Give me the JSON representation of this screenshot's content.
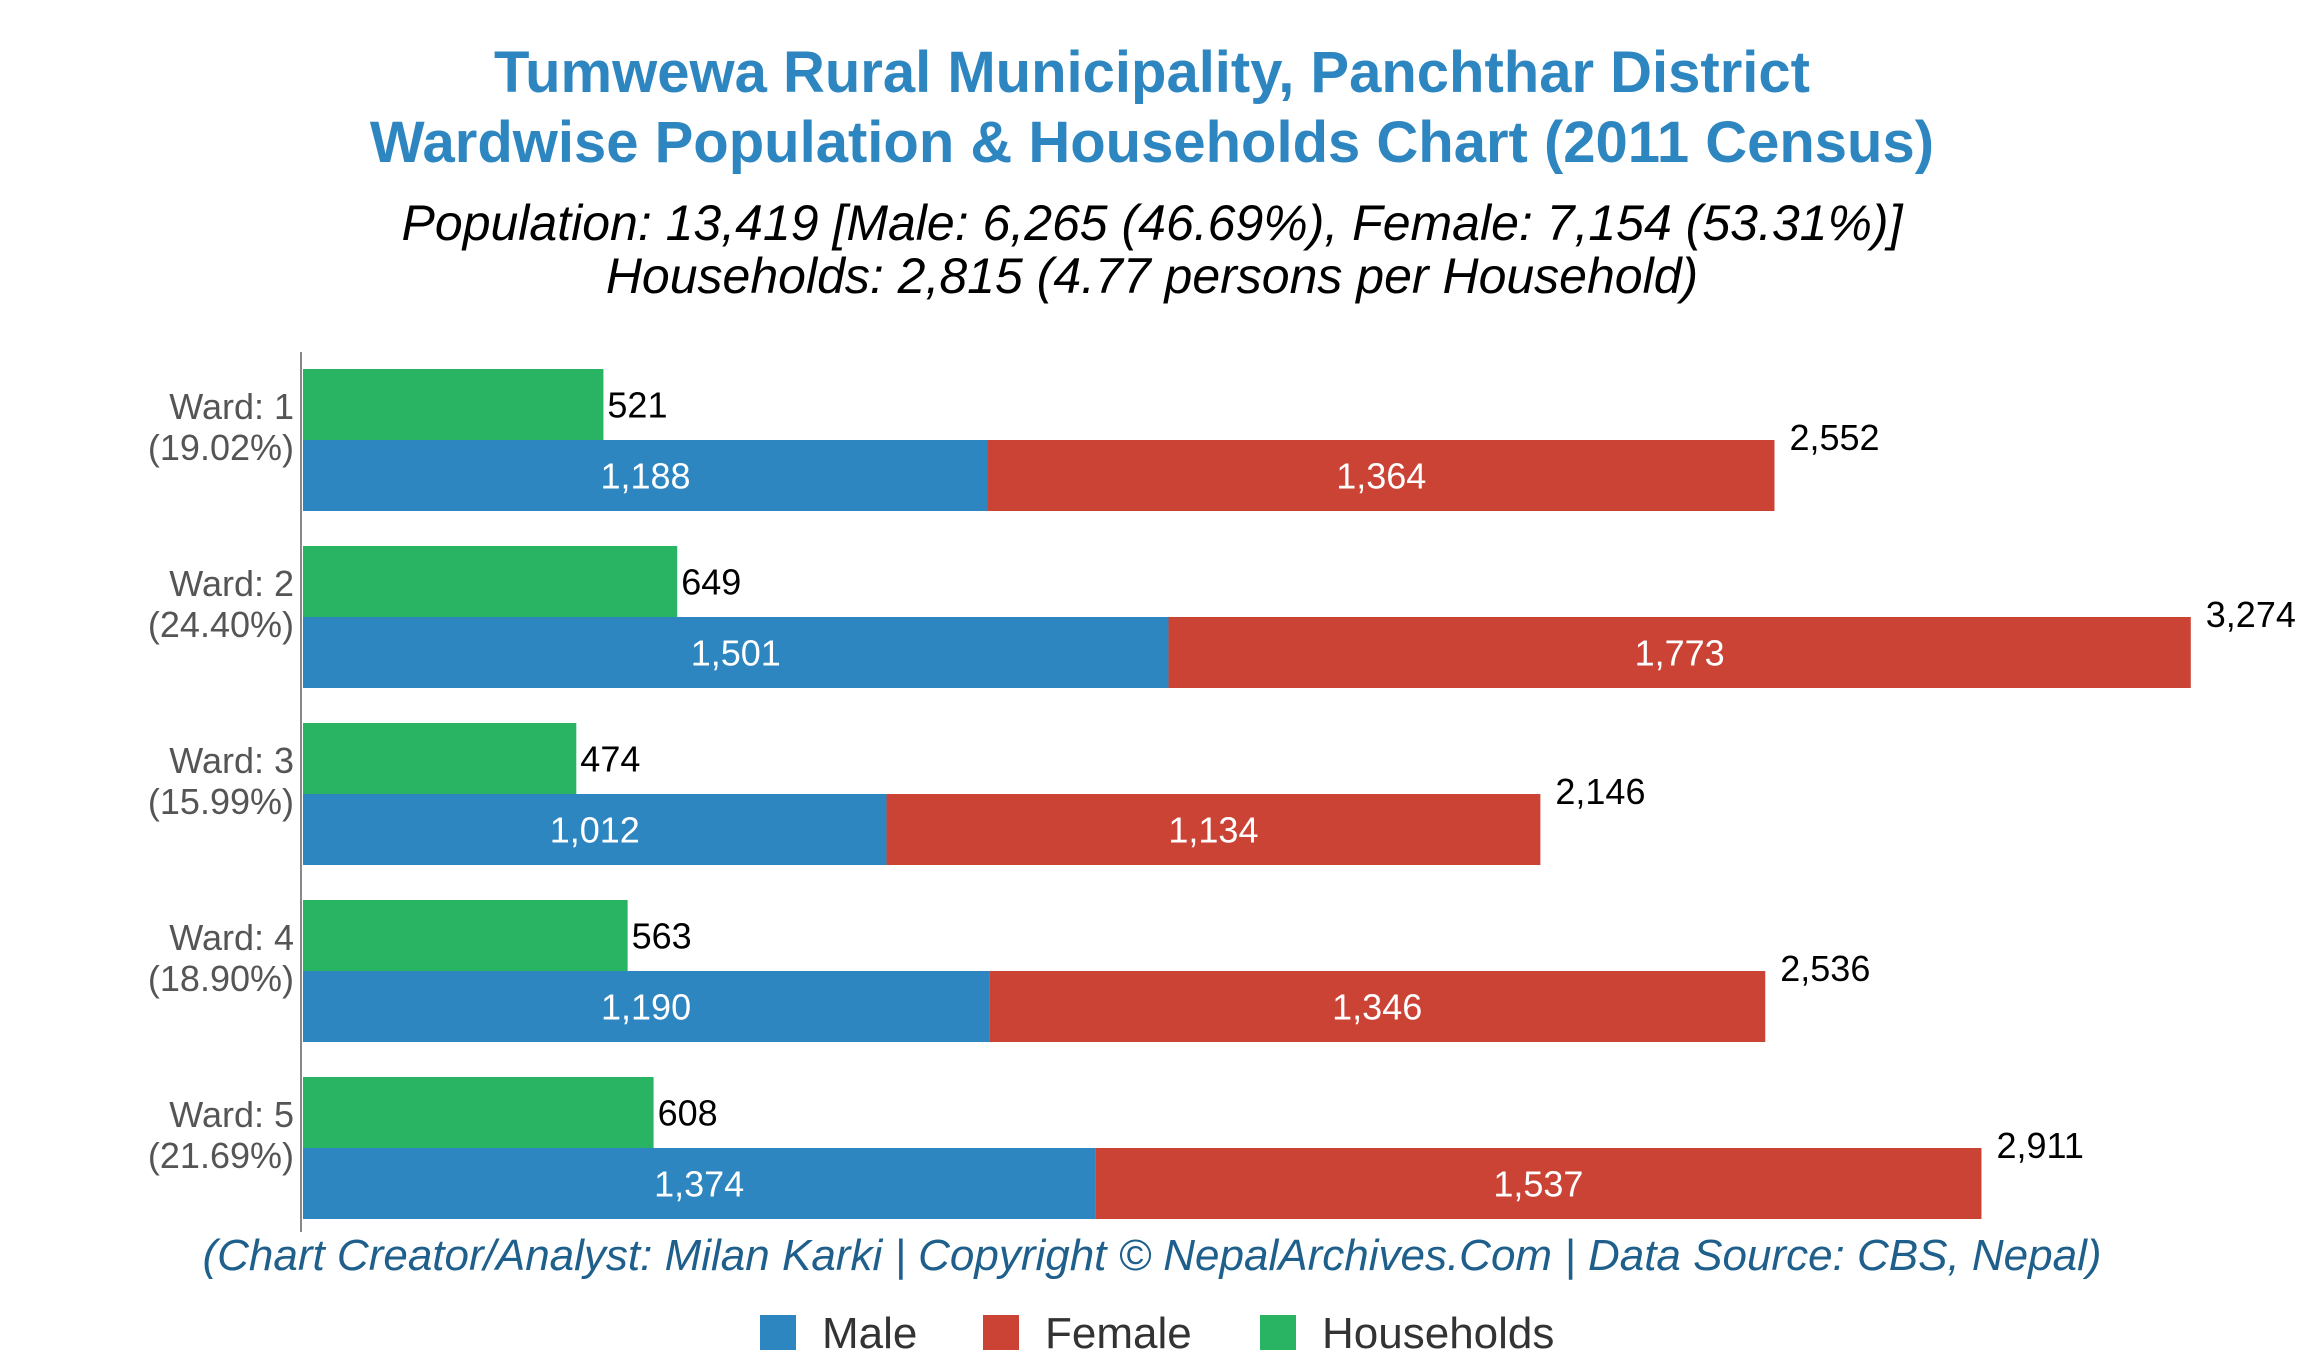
{
  "chart_data": {
    "type": "bar",
    "orientation": "horizontal",
    "title": [
      "Tumwewa Rural Municipality, Panchthar District",
      "Wardwise Population & Households Chart (2011 Census)"
    ],
    "subtitle": [
      "Population: 13,419 [Male: 6,265 (46.69%), Female: 7,154 (53.31%)]",
      "Households: 2,815 (4.77 persons per Household)"
    ],
    "categories": [
      {
        "label": "Ward: 1",
        "share": "(19.02%)"
      },
      {
        "label": "Ward: 2",
        "share": "(24.40%)"
      },
      {
        "label": "Ward: 3",
        "share": "(15.99%)"
      },
      {
        "label": "Ward: 4",
        "share": "(18.90%)"
      },
      {
        "label": "Ward: 5",
        "share": "(21.69%)"
      }
    ],
    "series": [
      {
        "name": "Male",
        "color": "#2e86c1",
        "values": [
          1188,
          1501,
          1012,
          1190,
          1374
        ],
        "labels": [
          "1,188",
          "1,501",
          "1,012",
          "1,190",
          "1,374"
        ]
      },
      {
        "name": "Female",
        "color": "#cb4335",
        "values": [
          1364,
          1773,
          1134,
          1346,
          1537
        ],
        "labels": [
          "1,364",
          "1,773",
          "1,134",
          "1,346",
          "1,537"
        ]
      },
      {
        "name": "Households",
        "color": "#28b463",
        "values": [
          521,
          649,
          474,
          563,
          608
        ],
        "labels": [
          "521",
          "649",
          "474",
          "563",
          "608"
        ]
      }
    ],
    "totals": {
      "values": [
        2552,
        3274,
        2146,
        2536,
        2911
      ],
      "labels": [
        "2,552",
        "3,274",
        "2,146",
        "2,536",
        "2,911"
      ]
    },
    "stacked": [
      "Male",
      "Female"
    ],
    "xlim": [
      0,
      3300
    ],
    "grid": false,
    "legend_position": "bottom"
  },
  "credit": "(Chart Creator/Analyst: Milan Karki | Copyright © NepalArchives.Com | Data Source: CBS, Nepal)"
}
